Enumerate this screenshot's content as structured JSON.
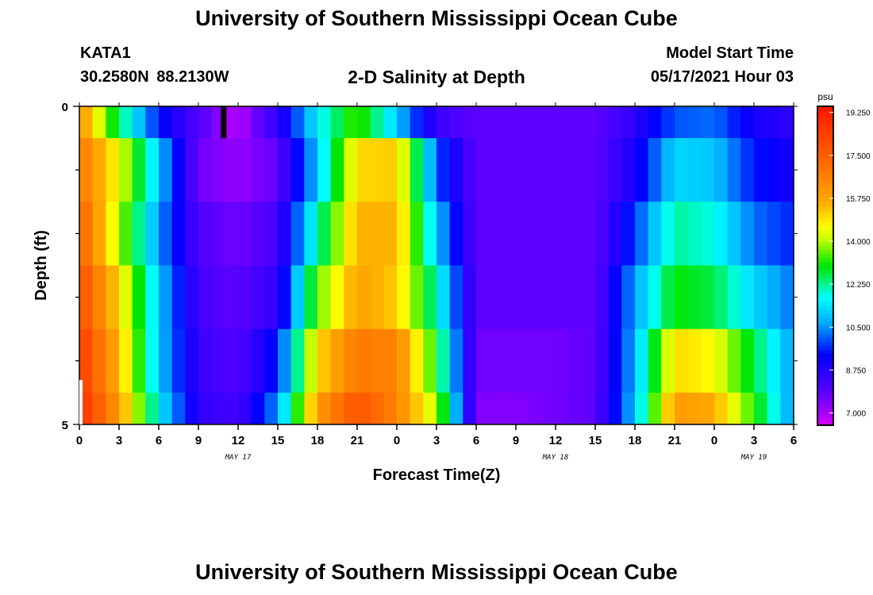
{
  "header": {
    "title": "University of Southern Mississippi Ocean Cube",
    "station": "KATA1",
    "coords": "30.2580N  88.2130W",
    "subtitle": "2-D Salinity at Depth",
    "model_start_label": "Model Start Time",
    "model_start_value": "05/17/2021 Hour 03"
  },
  "footer": {
    "title": "University of Southern Mississippi Ocean Cube"
  },
  "chart_data": {
    "type": "heatmap",
    "xlabel": "Forecast Time(Z)",
    "ylabel": "Depth (ft)",
    "x_tick_labels": [
      "0",
      "3",
      "6",
      "9",
      "12",
      "15",
      "18",
      "21",
      "0",
      "3",
      "6",
      "9",
      "12",
      "15",
      "18",
      "21",
      "0",
      "3",
      "6"
    ],
    "date_labels": [
      {
        "label": "MAY 17",
        "at_hour": 12
      },
      {
        "label": "MAY 18",
        "at_hour": 36
      },
      {
        "label": "MAY 19",
        "at_hour": 51
      }
    ],
    "y_tick_labels": [
      "0",
      "5"
    ],
    "x_range_hours": [
      0,
      54
    ],
    "ylim": [
      0,
      5
    ],
    "colorbar": {
      "unit": "psu",
      "range": [
        6.5,
        19.5
      ],
      "tick_labels": [
        "19.250",
        "17.500",
        "15.750",
        "14.000",
        "12.250",
        "10.500",
        "8.750",
        "7.000"
      ]
    },
    "hours": [
      0,
      3,
      6,
      9,
      12,
      15,
      18,
      21,
      24,
      27,
      30,
      33,
      36,
      39,
      42,
      45,
      48,
      51,
      54
    ],
    "layers": [
      {
        "depth_range": [
          0,
          0.5
        ],
        "values": [
          16.2,
          12.5,
          9.5,
          8.0,
          6.8,
          8.6,
          11.5,
          13.5,
          11.0,
          8.4,
          7.8,
          7.8,
          7.8,
          7.8,
          8.6,
          10.0,
          10.2,
          9.0,
          8.6
        ]
      },
      {
        "depth_range": [
          0.5,
          1.5
        ],
        "values": [
          16.8,
          14.5,
          11.0,
          7.6,
          7.2,
          7.8,
          11.0,
          15.0,
          15.2,
          10.0,
          7.8,
          7.8,
          7.8,
          7.8,
          9.0,
          11.2,
          11.0,
          9.5,
          9.0
        ]
      },
      {
        "depth_range": [
          1.5,
          2.5
        ],
        "values": [
          17.5,
          14.0,
          10.5,
          8.0,
          7.6,
          8.2,
          12.0,
          15.5,
          15.5,
          11.0,
          7.8,
          7.8,
          7.8,
          7.8,
          9.8,
          12.2,
          11.8,
          10.2,
          9.6
        ]
      },
      {
        "depth_range": [
          2.5,
          3.5
        ],
        "values": [
          18.0,
          15.0,
          11.0,
          8.2,
          7.8,
          8.6,
          13.5,
          15.8,
          15.2,
          12.0,
          7.8,
          7.8,
          7.8,
          7.8,
          10.6,
          13.0,
          12.6,
          11.2,
          10.2
        ]
      },
      {
        "depth_range": [
          3.5,
          4.5
        ],
        "values": [
          18.5,
          15.5,
          11.0,
          8.4,
          8.0,
          9.5,
          15.0,
          16.8,
          16.5,
          13.0,
          7.6,
          7.6,
          7.6,
          7.8,
          10.8,
          15.0,
          14.6,
          12.6,
          10.5
        ]
      },
      {
        "depth_range": [
          4.5,
          5.0
        ],
        "values": [
          18.8,
          16.0,
          11.5,
          8.6,
          8.2,
          10.5,
          16.0,
          17.8,
          16.5,
          14.0,
          7.4,
          7.4,
          7.6,
          7.8,
          11.0,
          16.0,
          15.6,
          13.2,
          10.4
        ]
      }
    ]
  }
}
